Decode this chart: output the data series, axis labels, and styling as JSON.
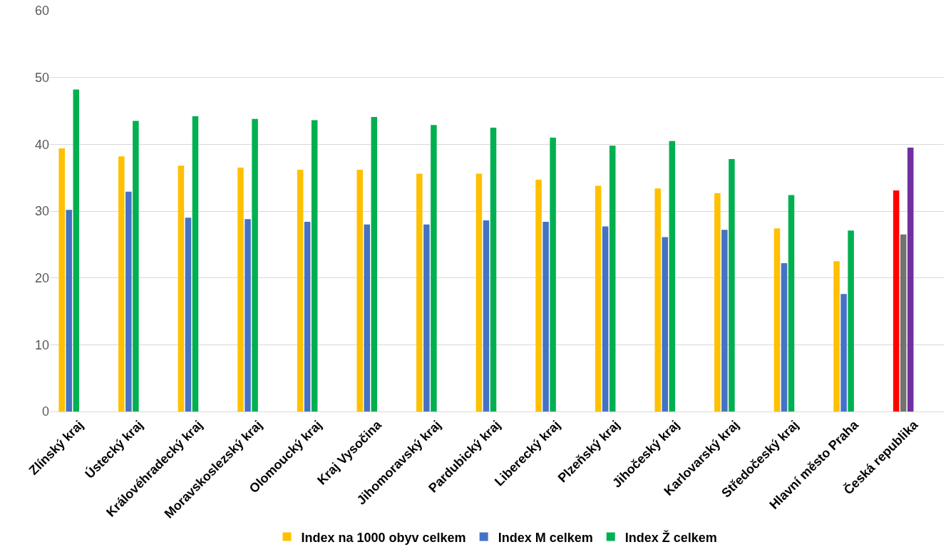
{
  "chart_data": {
    "type": "bar",
    "categories": [
      "Zlínský kraj",
      "Ústecký kraj",
      "Královéhradecký kraj",
      "Moravskoslezský kraj",
      "Olomoucký kraj",
      "Kraj Vysočina",
      "Jihomoravský kraj",
      "Pardubický kraj",
      "Liberecký kraj",
      "Plzeňský kraj",
      "Jihočeský kraj",
      "Karlovarský kraj",
      "Středočeský kraj",
      "Hlavní město Praha",
      "Česká republika"
    ],
    "series": [
      {
        "name": "Index na 1000 obyv celkem",
        "color": "#ffc000",
        "colors": [
          "#ffc000",
          "#ffc000",
          "#ffc000",
          "#ffc000",
          "#ffc000",
          "#ffc000",
          "#ffc000",
          "#ffc000",
          "#ffc000",
          "#ffc000",
          "#ffc000",
          "#ffc000",
          "#ffc000",
          "#ffc000",
          "#ff0000"
        ],
        "values": [
          39.4,
          38.2,
          36.8,
          36.5,
          36.2,
          36.2,
          35.6,
          35.6,
          34.7,
          33.8,
          33.4,
          32.7,
          27.4,
          22.5,
          33.1
        ]
      },
      {
        "name": "Index M celkem",
        "color": "#4472c4",
        "colors": [
          "#4472c4",
          "#4472c4",
          "#4472c4",
          "#4472c4",
          "#4472c4",
          "#4472c4",
          "#4472c4",
          "#4472c4",
          "#4472c4",
          "#4472c4",
          "#4472c4",
          "#4472c4",
          "#4472c4",
          "#4472c4",
          "#767171"
        ],
        "values": [
          30.2,
          32.9,
          29.0,
          28.8,
          28.4,
          28.0,
          28.0,
          28.6,
          28.4,
          27.7,
          26.1,
          27.2,
          22.2,
          17.6,
          26.5
        ]
      },
      {
        "name": "Index Ž celkem",
        "color": "#00b050",
        "colors": [
          "#00b050",
          "#00b050",
          "#00b050",
          "#00b050",
          "#00b050",
          "#00b050",
          "#00b050",
          "#00b050",
          "#00b050",
          "#00b050",
          "#00b050",
          "#00b050",
          "#00b050",
          "#00b050",
          "#7030a0"
        ],
        "values": [
          48.2,
          43.5,
          44.2,
          43.8,
          43.6,
          44.1,
          42.9,
          42.5,
          41.0,
          39.8,
          40.5,
          37.8,
          32.4,
          27.1,
          39.5
        ]
      }
    ],
    "ylim": [
      0,
      60
    ],
    "yticks": [
      0,
      10,
      20,
      30,
      40,
      50,
      60
    ],
    "grid": "y",
    "legend": "bottom"
  }
}
